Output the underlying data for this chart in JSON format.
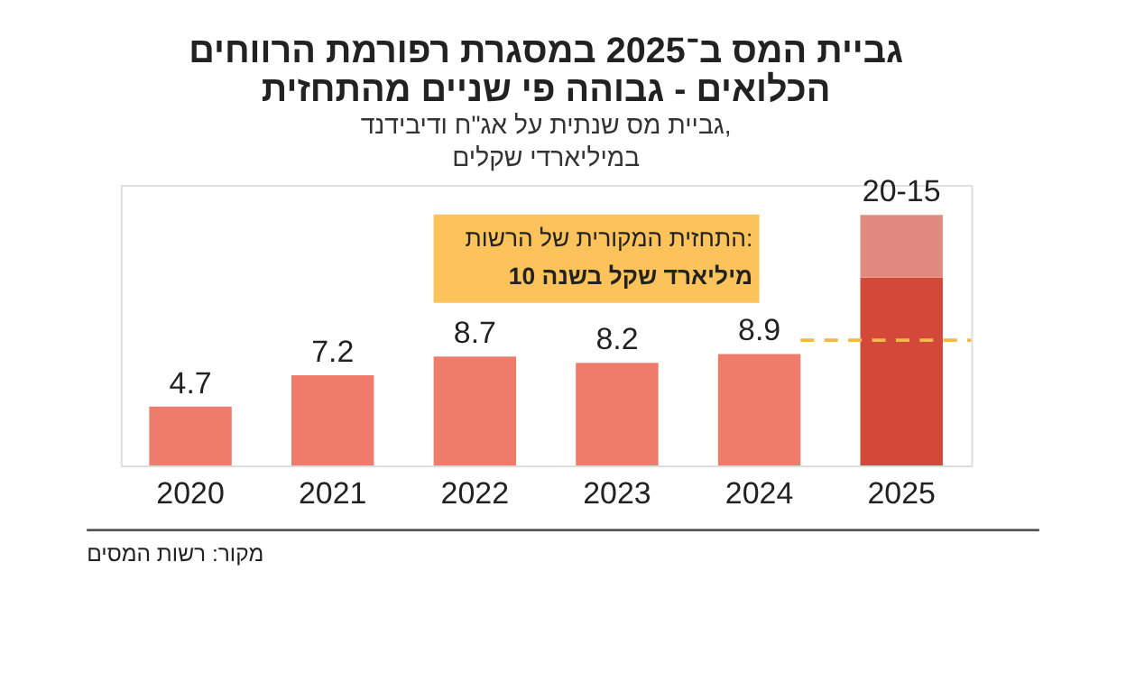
{
  "chart_data": {
    "type": "bar",
    "title": "גביית המס ב־2025 במסגרת רפורמת הרווחים\nהכלואים - גבוהה פי שניים מהתחזית",
    "subtitle": "גביית מס שנתית על אג\"ח ודיבידנד,\nבמיליארדי שקלים",
    "categories": [
      "2020",
      "2021",
      "2022",
      "2023",
      "2024",
      "2025"
    ],
    "stacked": true,
    "series": [
      {
        "colors": [
          "#ef7b6b",
          "#ef7b6b",
          "#ef7b6b",
          "#ef7b6b",
          "#ef7b6b",
          "#d4483a"
        ],
        "values": [
          4.7,
          7.2,
          8.7,
          8.2,
          8.9,
          15
        ],
        "value_labels": [
          "4.7",
          "7.2",
          "8.7",
          "8.2",
          "8.9",
          null
        ]
      },
      {
        "color": "#e38a80",
        "values": [
          null,
          null,
          null,
          null,
          null,
          5
        ]
      }
    ],
    "totals": [
      null,
      null,
      null,
      null,
      null,
      "20-15"
    ],
    "ref_lines": [
      {
        "axis": "y",
        "value": 10,
        "label": "התחזית המקורית של הרשות:\n10 מיליארד שקל בשנה",
        "color": "#f2b84b",
        "line_style": "dashed"
      }
    ],
    "annotations": [
      "מקור: רשות המסים"
    ],
    "grid": false,
    "tick_labels": "x"
  }
}
